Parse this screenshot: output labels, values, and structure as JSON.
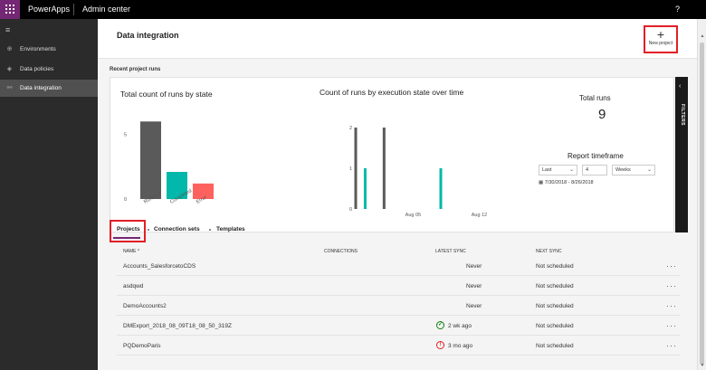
{
  "app": {
    "brand": "PowerApps",
    "section": "Admin center",
    "help": "?"
  },
  "sidebar": {
    "items": [
      {
        "label": "Environments",
        "icon": "globe-icon",
        "active": false
      },
      {
        "label": "Data policies",
        "icon": "shield-icon",
        "active": false
      },
      {
        "label": "Data integration",
        "icon": "integration-icon",
        "active": true
      }
    ]
  },
  "page": {
    "title": "Data integration",
    "new_project_label": "New project",
    "recent_runs_label": "Recent project runs"
  },
  "dashboard": {
    "runs_by_state_title": "Total count of runs by state",
    "runs_over_time_title": "Count of runs by execution state over time",
    "total_runs_title": "Total runs",
    "total_runs_value": "9",
    "report_timeframe_title": "Report timeframe",
    "timeframe": {
      "mode": "Last",
      "count": "4",
      "unit": "Weeks",
      "range": "7/30/2018 - 8/26/2018"
    },
    "filters_label": "FILTERS"
  },
  "chart_data": [
    {
      "type": "bar",
      "title": "Total count of runs by state",
      "categories": [
        "Running",
        "Completed",
        "Error"
      ],
      "values": [
        6,
        2.1,
        1.2
      ],
      "colors": [
        "#5a5a5a",
        "#01b8aa",
        "#fd625e"
      ],
      "yticks": [
        "0",
        "5"
      ],
      "ylim": [
        0,
        7
      ]
    },
    {
      "type": "bar",
      "title": "Count of runs by execution state over time",
      "xticks": [
        "Aug 05",
        "Aug 12",
        "Aug 19",
        "Aug 26"
      ],
      "yticks": [
        "0",
        "1",
        "2"
      ],
      "ylim": [
        0,
        2
      ],
      "series": [
        {
          "name": "Running",
          "color": "#5a5a5a",
          "points": [
            {
              "d": "2018-07-30",
              "v": 2
            },
            {
              "d": "2018-08-02",
              "v": 2
            },
            {
              "d": "2018-08-25",
              "v": 1
            }
          ]
        },
        {
          "name": "Completed",
          "color": "#01b8aa",
          "points": [
            {
              "d": "2018-07-31",
              "v": 1
            },
            {
              "d": "2018-08-08",
              "v": 1
            },
            {
              "d": "2018-08-25",
              "v": 1
            }
          ]
        },
        {
          "name": "Error",
          "color": "#fd625e",
          "points": [
            {
              "d": "2018-08-26",
              "v": 1
            }
          ]
        }
      ]
    }
  ],
  "tabs": [
    {
      "label": "Projects",
      "active": true
    },
    {
      "label": "Connection sets",
      "active": false
    },
    {
      "label": "Templates",
      "active": false
    }
  ],
  "table": {
    "headers": {
      "name": "NAME",
      "sort_icon": "^",
      "connections": "CONNECTIONS",
      "latest_sync": "LATEST SYNC",
      "next_sync": "NEXT SYNC"
    },
    "rows": [
      {
        "name": "Accounts_SalesforcetoCDS",
        "latest_sync": "Never",
        "status": "none",
        "next_sync": "Not scheduled"
      },
      {
        "name": "asdqwd",
        "latest_sync": "Never",
        "status": "none",
        "next_sync": "Not scheduled"
      },
      {
        "name": "DemoAccounts2",
        "latest_sync": "Never",
        "status": "none",
        "next_sync": "Not scheduled"
      },
      {
        "name": "DMExport_2018_08_09T18_08_50_319Z",
        "latest_sync": "2 wk ago",
        "status": "ok",
        "next_sync": "Not scheduled"
      },
      {
        "name": "PQDemoParis",
        "latest_sync": "3 mo ago",
        "status": "error",
        "next_sync": "Not scheduled"
      }
    ],
    "more_label": "···"
  }
}
